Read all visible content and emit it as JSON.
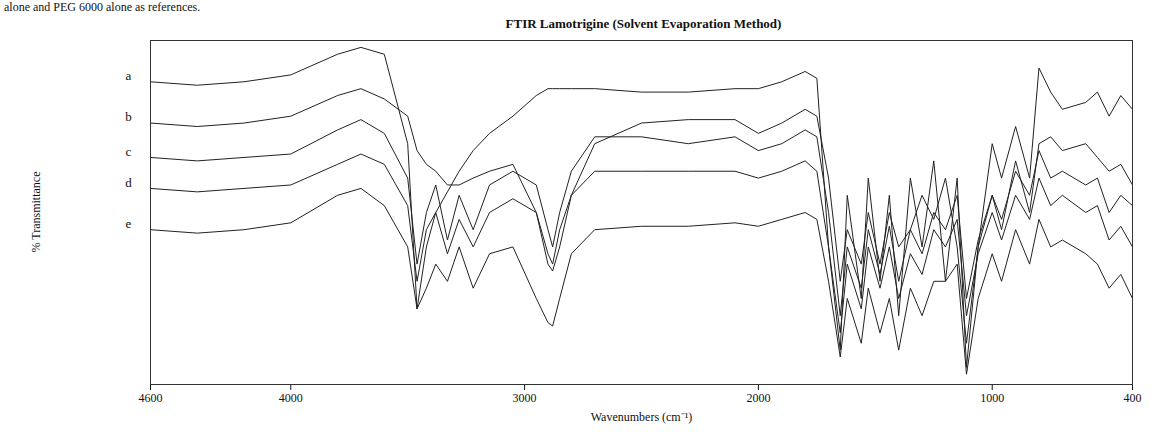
{
  "chart_data": {
    "type": "line",
    "caption": "alone and PEG 6000 alone as references.",
    "title": "FTIR Lamotrigine (Solvent Evaporation Method)",
    "x_label": "Wavenumbers (cm⁻¹)",
    "y_label": "% Transmittance",
    "xlim": [
      4600,
      400
    ],
    "xticks": [
      4600,
      4000,
      3000,
      2000,
      1000,
      400
    ],
    "ylim": [
      0,
      100
    ],
    "tick_labels": "x",
    "grid": false,
    "x": [
      4600,
      4400,
      4200,
      4000,
      3800,
      3700,
      3600,
      3500,
      3460,
      3420,
      3380,
      3330,
      3280,
      3220,
      3150,
      3050,
      2950,
      2900,
      2880,
      2850,
      2800,
      2700,
      2500,
      2300,
      2100,
      2000,
      1900,
      1800,
      1750,
      1700,
      1650,
      1620,
      1560,
      1530,
      1480,
      1440,
      1400,
      1350,
      1300,
      1250,
      1200,
      1150,
      1110,
      1060,
      1000,
      960,
      900,
      840,
      800,
      750,
      700,
      600,
      550,
      500,
      450,
      400
    ],
    "series": [
      {
        "name": "a",
        "color": "#222222",
        "values": [
          88,
          87,
          88,
          90,
          96,
          98,
          96,
          70,
          22,
          40,
          50,
          56,
          62,
          68,
          73,
          78,
          84,
          86,
          86,
          86,
          86,
          86,
          85,
          85,
          86,
          86,
          88,
          91,
          89,
          40,
          10,
          55,
          25,
          60,
          30,
          55,
          20,
          60,
          40,
          65,
          30,
          60,
          5,
          40,
          70,
          60,
          75,
          60,
          92,
          85,
          80,
          82,
          85,
          78,
          84,
          80
        ]
      },
      {
        "name": "b",
        "color": "#222222",
        "values": [
          76,
          75,
          76,
          78,
          84,
          86,
          83,
          78,
          68,
          64,
          62,
          58,
          58,
          60,
          62,
          64,
          50,
          35,
          33,
          40,
          55,
          70,
          76,
          77,
          77,
          73,
          76,
          80,
          78,
          60,
          30,
          45,
          35,
          50,
          35,
          50,
          40,
          45,
          55,
          48,
          60,
          40,
          12,
          40,
          55,
          45,
          65,
          50,
          70,
          72,
          68,
          70,
          66,
          62,
          64,
          58
        ]
      },
      {
        "name": "c",
        "color": "#222222",
        "values": [
          66,
          65,
          66,
          67,
          74,
          77,
          73,
          60,
          35,
          50,
          58,
          42,
          55,
          45,
          58,
          62,
          58,
          45,
          40,
          50,
          62,
          72,
          72,
          70,
          72,
          68,
          70,
          74,
          72,
          50,
          20,
          40,
          28,
          45,
          32,
          46,
          30,
          45,
          38,
          50,
          45,
          55,
          25,
          42,
          55,
          48,
          62,
          55,
          68,
          60,
          62,
          58,
          60,
          50,
          55,
          52
        ]
      },
      {
        "name": "d",
        "color": "#222222",
        "values": [
          57,
          56,
          57,
          58,
          64,
          67,
          64,
          52,
          30,
          45,
          50,
          38,
          48,
          40,
          50,
          54,
          50,
          38,
          35,
          45,
          55,
          62,
          62,
          62,
          62,
          60,
          62,
          65,
          62,
          40,
          15,
          35,
          22,
          40,
          28,
          40,
          25,
          38,
          32,
          45,
          40,
          48,
          20,
          38,
          50,
          42,
          55,
          48,
          60,
          52,
          55,
          50,
          52,
          42,
          46,
          40
        ]
      },
      {
        "name": "e",
        "color": "#222222",
        "values": [
          45,
          44,
          45,
          47,
          55,
          57,
          52,
          40,
          22,
          28,
          35,
          30,
          40,
          28,
          38,
          40,
          25,
          18,
          17,
          25,
          38,
          45,
          46,
          46,
          47,
          46,
          48,
          50,
          48,
          30,
          8,
          25,
          12,
          28,
          15,
          25,
          10,
          28,
          20,
          30,
          30,
          35,
          3,
          25,
          38,
          30,
          45,
          35,
          48,
          40,
          42,
          38,
          35,
          28,
          32,
          25
        ]
      }
    ]
  }
}
